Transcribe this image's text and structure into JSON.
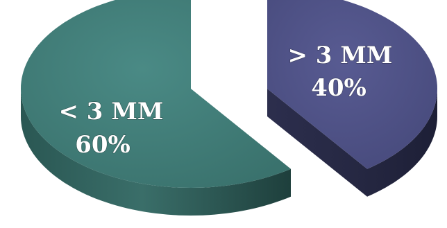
{
  "chart_data": {
    "type": "pie",
    "title": "",
    "categories": [
      "< 3 MM",
      "> 3 MM"
    ],
    "values": [
      60,
      40
    ],
    "value_labels": [
      "60%",
      "40%"
    ],
    "colors": [
      "#3f7a75",
      "#4d4f82"
    ],
    "exploded": true,
    "style": "3d",
    "legend": "none"
  }
}
